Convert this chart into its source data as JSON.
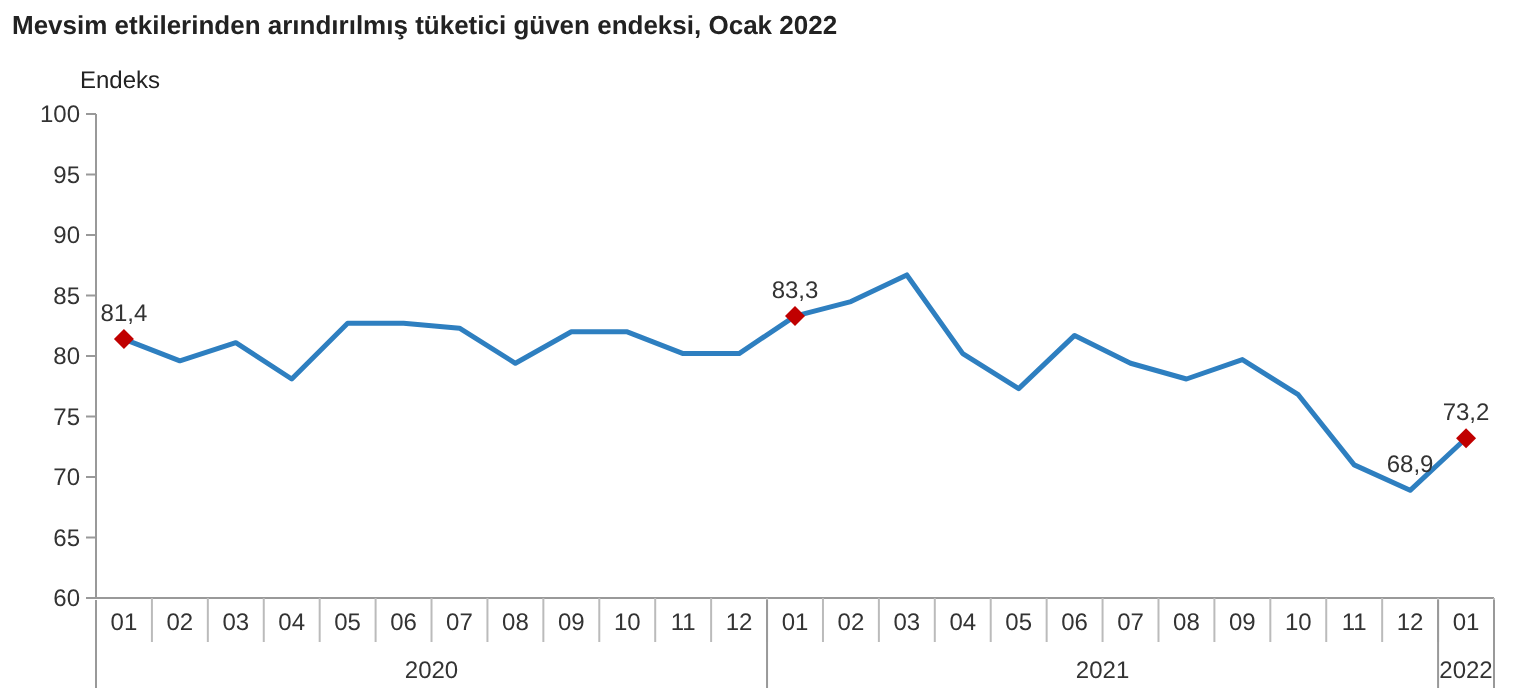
{
  "chart_data": {
    "type": "line",
    "title": "Mevsim etkilerinden arındırılmış tüketici güven endeksi, Ocak 2022",
    "ylabel": "Endeks",
    "categories": [
      "01",
      "02",
      "03",
      "04",
      "05",
      "06",
      "07",
      "08",
      "09",
      "10",
      "11",
      "12",
      "01",
      "02",
      "03",
      "04",
      "05",
      "06",
      "07",
      "08",
      "09",
      "10",
      "11",
      "12",
      "01"
    ],
    "annotations": [
      "2020",
      "2021",
      "2022"
    ],
    "series": [
      {
        "color": "#2e7fc0",
        "marker": "none",
        "values": [
          81.4,
          79.6,
          81.1,
          78.1,
          82.7,
          82.7,
          82.3,
          79.4,
          82.0,
          82.0,
          80.2,
          80.2,
          83.3,
          84.5,
          86.7,
          80.2,
          77.3,
          81.7,
          79.4,
          78.1,
          79.7,
          76.8,
          71.0,
          68.9,
          73.2
        ],
        "value_labels": [
          "81,4",
          null,
          null,
          null,
          null,
          null,
          null,
          null,
          null,
          null,
          null,
          null,
          "83,3",
          null,
          null,
          null,
          null,
          null,
          null,
          null,
          null,
          null,
          null,
          "68,9",
          "73,2"
        ]
      },
      {
        "type": "scatter",
        "color": "#c00000",
        "marker": "diamond",
        "values": [
          81.4,
          null,
          null,
          null,
          null,
          null,
          null,
          null,
          null,
          null,
          null,
          null,
          83.3,
          null,
          null,
          null,
          null,
          null,
          null,
          null,
          null,
          null,
          null,
          null,
          73.2
        ]
      }
    ],
    "ylim": [
      60,
      100
    ],
    "yticks": [
      60,
      65,
      70,
      75,
      80,
      85,
      90,
      95,
      100
    ],
    "grid": false
  }
}
